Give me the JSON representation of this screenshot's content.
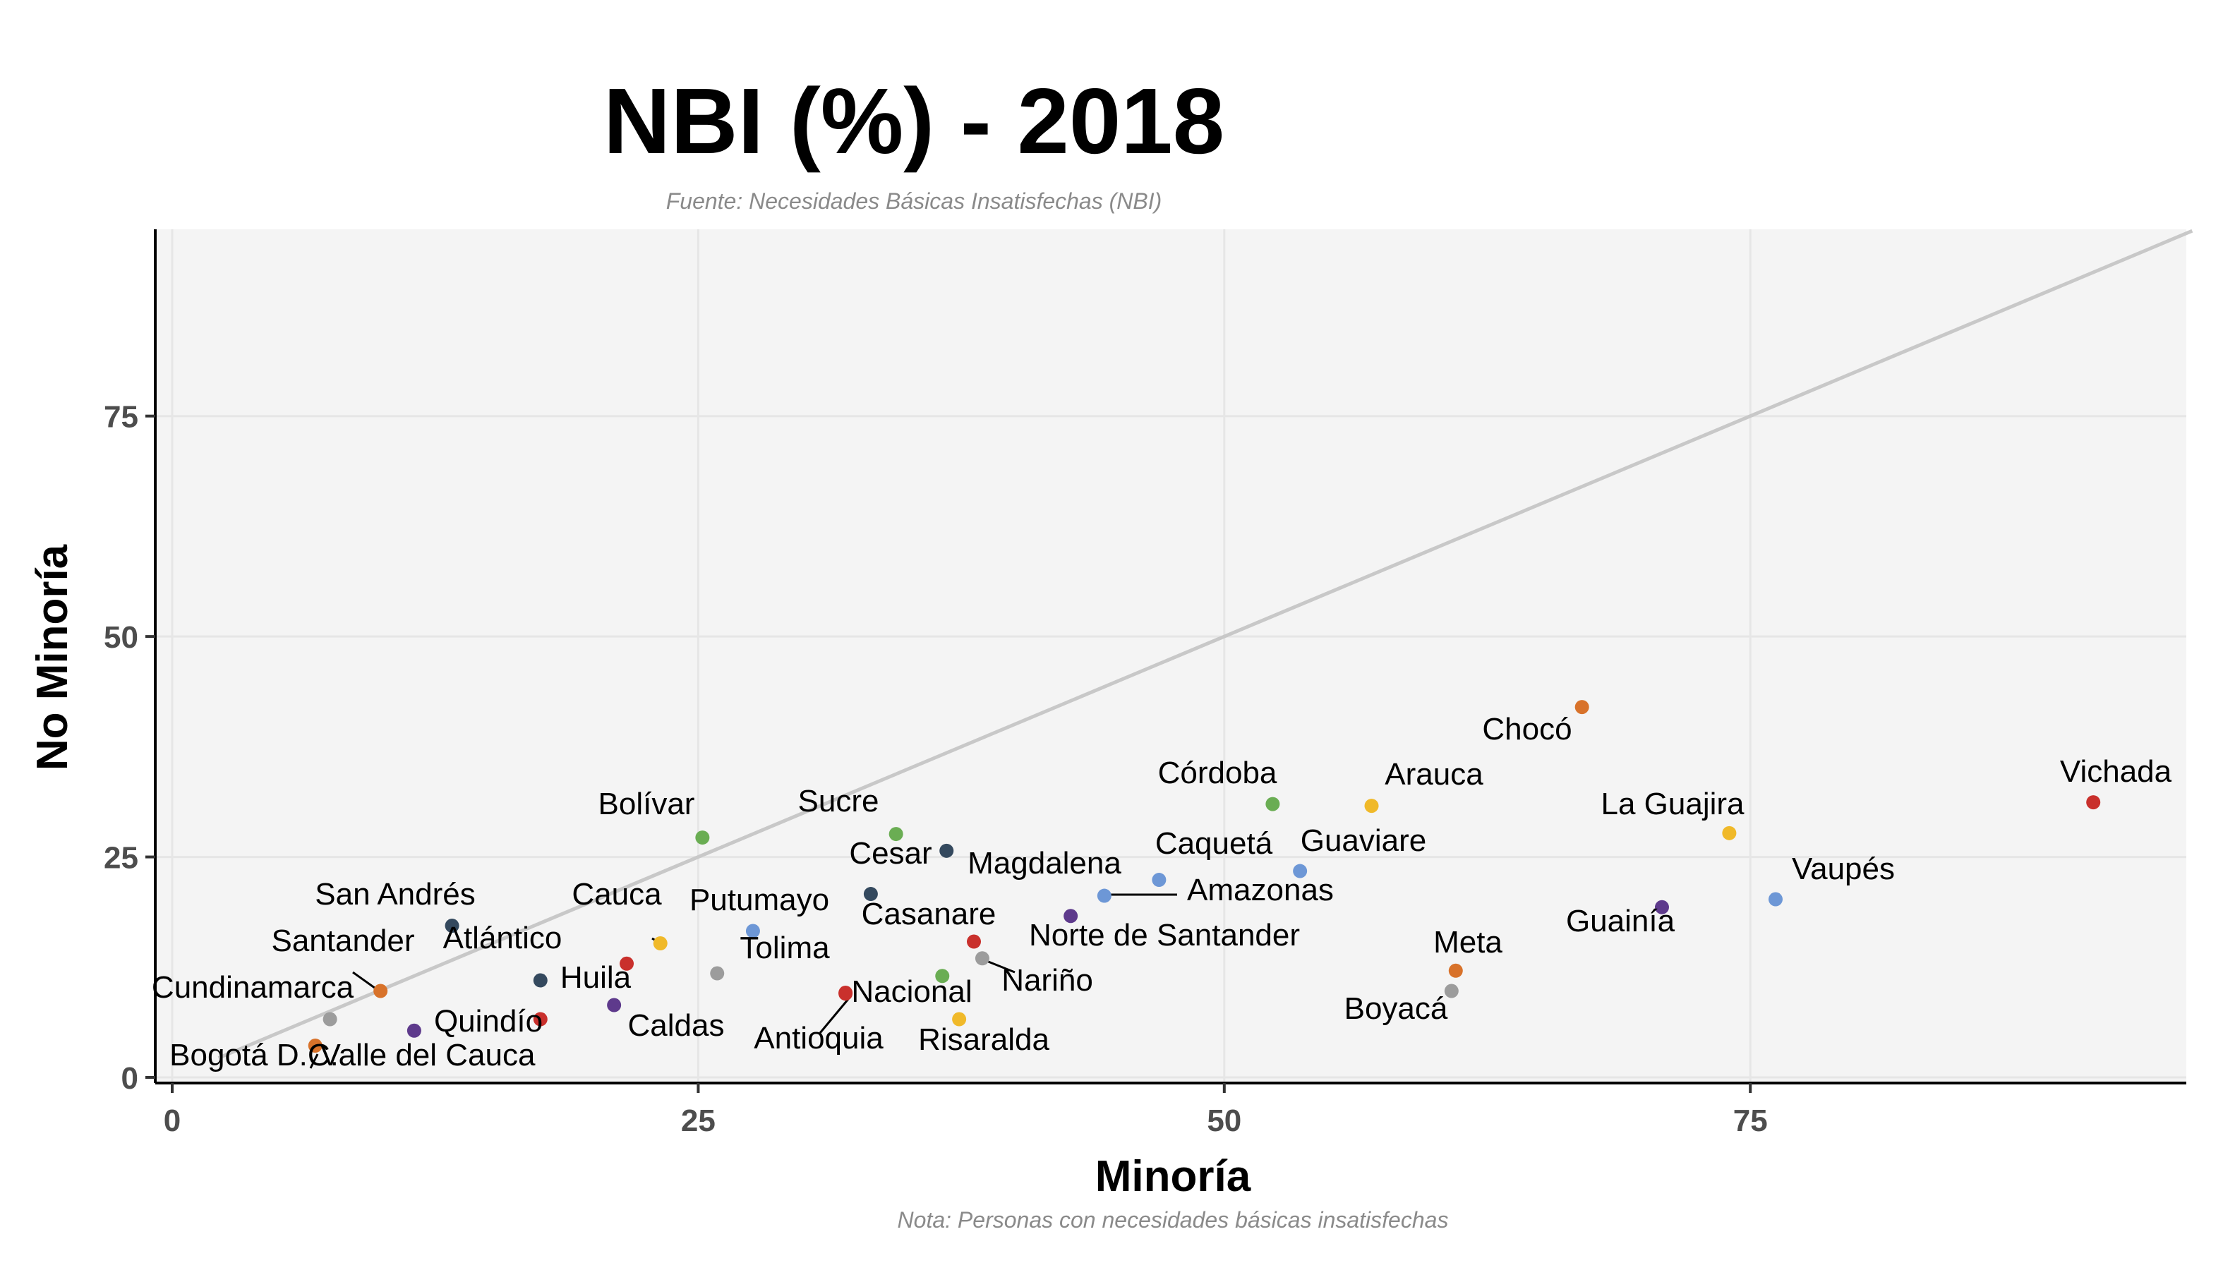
{
  "chart_data": {
    "type": "scatter",
    "title": "NBI (%) - 2018",
    "subtitle": "Fuente: Necesidades Básicas Insatisfechas (NBI)",
    "xlabel": "Minoría",
    "ylabel": "No Minoría",
    "note": "Nota: Personas con necesidades básicas insatisfechas",
    "xlim": [
      0,
      95.5
    ],
    "ylim": [
      0,
      96
    ],
    "xticks": [
      0,
      25,
      50,
      75
    ],
    "yticks": [
      0,
      25,
      50,
      75
    ],
    "grid": true,
    "reference_line": "y = x",
    "background": "#f4f4f4",
    "points": [
      {
        "name": "Vichada",
        "x": 91.3,
        "y": 31.2,
        "color": "#c9302c"
      },
      {
        "name": "Chocó",
        "x": 67.0,
        "y": 42.0,
        "color": "#d8722a"
      },
      {
        "name": "La Guajira",
        "x": 74.0,
        "y": 27.7,
        "color": "#f0b929"
      },
      {
        "name": "Vaupés",
        "x": 76.2,
        "y": 20.2,
        "color": "#6d97d6"
      },
      {
        "name": "Guainía",
        "x": 70.8,
        "y": 19.3,
        "color": "#5e3a8c"
      },
      {
        "name": "Arauca",
        "x": 57.0,
        "y": 30.8,
        "color": "#f0b929"
      },
      {
        "name": "Córdoba",
        "x": 52.3,
        "y": 31.0,
        "color": "#6aad53"
      },
      {
        "name": "Guaviare",
        "x": 53.6,
        "y": 23.4,
        "color": "#6d97d6"
      },
      {
        "name": "Caquetá",
        "x": 46.9,
        "y": 22.4,
        "color": "#6d97d6"
      },
      {
        "name": "Amazonas",
        "x": 44.3,
        "y": 20.6,
        "color": "#6d97d6"
      },
      {
        "name": "Magdalena",
        "x": 42.7,
        "y": 18.3,
        "color": "#5e3a8c"
      },
      {
        "name": "Meta",
        "x": 61.0,
        "y": 12.1,
        "color": "#d8722a"
      },
      {
        "name": "Boyacá",
        "x": 60.8,
        "y": 9.8,
        "color": "#9c9c9c"
      },
      {
        "name": "Norte de Santander",
        "x": 38.1,
        "y": 15.4,
        "color": "#c9302c"
      },
      {
        "name": "Nariño",
        "x": 38.5,
        "y": 13.5,
        "color": "#9c9c9c"
      },
      {
        "name": "Casanare",
        "x": 36.6,
        "y": 11.5,
        "color": "#6aad53"
      },
      {
        "name": "Risaralda",
        "x": 37.4,
        "y": 6.6,
        "color": "#f0b929"
      },
      {
        "name": "Cesar",
        "x": 36.8,
        "y": 25.7,
        "color": "#34495e"
      },
      {
        "name": "Sucre",
        "x": 34.4,
        "y": 27.6,
        "color": "#6aad53"
      },
      {
        "name": "Magdalena_",
        "x": 33.2,
        "y": 20.8,
        "color": "#34495e"
      },
      {
        "name": "Nacional",
        "x": 32.0,
        "y": 9.6,
        "color": "#c9302c"
      },
      {
        "name": "Antioquia",
        "x": 32.0,
        "y": 9.5,
        "color": "#c9302c"
      },
      {
        "name": "Putumayo",
        "x": 27.6,
        "y": 16.6,
        "color": "#6d97d6"
      },
      {
        "name": "Tolima",
        "x": 25.9,
        "y": 11.8,
        "color": "#9c9c9c"
      },
      {
        "name": "Bolívar",
        "x": 25.2,
        "y": 27.2,
        "color": "#6aad53"
      },
      {
        "name": "Cauca",
        "x": 23.2,
        "y": 15.2,
        "color": "#f0b929"
      },
      {
        "name": "Caldas",
        "x": 21.0,
        "y": 8.2,
        "color": "#5e3a8c"
      },
      {
        "name": "Atlántico",
        "x": 21.6,
        "y": 12.9,
        "color": "#c9302c"
      },
      {
        "name": "Huila",
        "x": 17.5,
        "y": 11.0,
        "color": "#34495e"
      },
      {
        "name": "Valle del Cauca",
        "x": 17.5,
        "y": 6.6,
        "color": "#c9302c"
      },
      {
        "name": "Quindío",
        "x": 11.5,
        "y": 5.3,
        "color": "#5e3a8c"
      },
      {
        "name": "San Andrés",
        "x": 13.3,
        "y": 17.2,
        "color": "#34495e"
      },
      {
        "name": "Santander",
        "x": 9.9,
        "y": 9.8,
        "color": "#d8722a"
      },
      {
        "name": "Cundinamarca",
        "x": 7.5,
        "y": 6.6,
        "color": "#9c9c9c"
      },
      {
        "name": "Bogotá D.C.",
        "x": 6.8,
        "y": 3.6,
        "color": "#d8722a"
      }
    ],
    "labels": [
      {
        "text": "Vichada",
        "for": "Vichada"
      },
      {
        "text": "Chocó",
        "for": "Chocó"
      },
      {
        "text": "La Guajira",
        "for": "La Guajira"
      },
      {
        "text": "Vaupés",
        "for": "Vaupés"
      },
      {
        "text": "Guainía",
        "for": "Guainía"
      },
      {
        "text": "Arauca",
        "for": "Arauca"
      },
      {
        "text": "Córdoba",
        "for": "Córdoba"
      },
      {
        "text": "Guaviare",
        "for": "Guaviare"
      },
      {
        "text": "Caquetá",
        "for": "Caquetá"
      },
      {
        "text": "Amazonas",
        "for": "Amazonas"
      },
      {
        "text": "Magdalena",
        "for": "Magdalena"
      },
      {
        "text": "Meta",
        "for": "Meta"
      },
      {
        "text": "Boyacá",
        "for": "Boyacá"
      },
      {
        "text": "Norte de Santander",
        "for": "Norte de Santander"
      },
      {
        "text": "Nariño",
        "for": "Nariño"
      },
      {
        "text": "Casanare",
        "for": "Casanare"
      },
      {
        "text": "Risaralda",
        "for": "Risaralda"
      },
      {
        "text": "Cesar",
        "for": "Magdalena_"
      },
      {
        "text": "Sucre",
        "for": "Sucre"
      },
      {
        "text": "Nacional",
        "for": "Nacional"
      },
      {
        "text": "Antioquia",
        "for": "Antioquia"
      },
      {
        "text": "Putumayo",
        "for": "Putumayo"
      },
      {
        "text": "Tolima",
        "for": "Tolima"
      },
      {
        "text": "Bolívar",
        "for": "Bolívar"
      },
      {
        "text": "Cauca",
        "for": "Cauca"
      },
      {
        "text": "Caldas",
        "for": "Caldas"
      },
      {
        "text": "Atlántico",
        "for": "Atlántico"
      },
      {
        "text": "Huila",
        "for": "Huila"
      },
      {
        "text": "Valle del Cauca",
        "for": "Valle del Cauca"
      },
      {
        "text": "Quindío",
        "for": "Quindío"
      },
      {
        "text": "San Andrés",
        "for": "San Andrés"
      },
      {
        "text": "Santander",
        "for": "Santander"
      },
      {
        "text": "Cundinamarca",
        "for": "Cundinamarca"
      },
      {
        "text": "Bogotá D.C.",
        "for": "Bogotá D.C."
      }
    ]
  }
}
